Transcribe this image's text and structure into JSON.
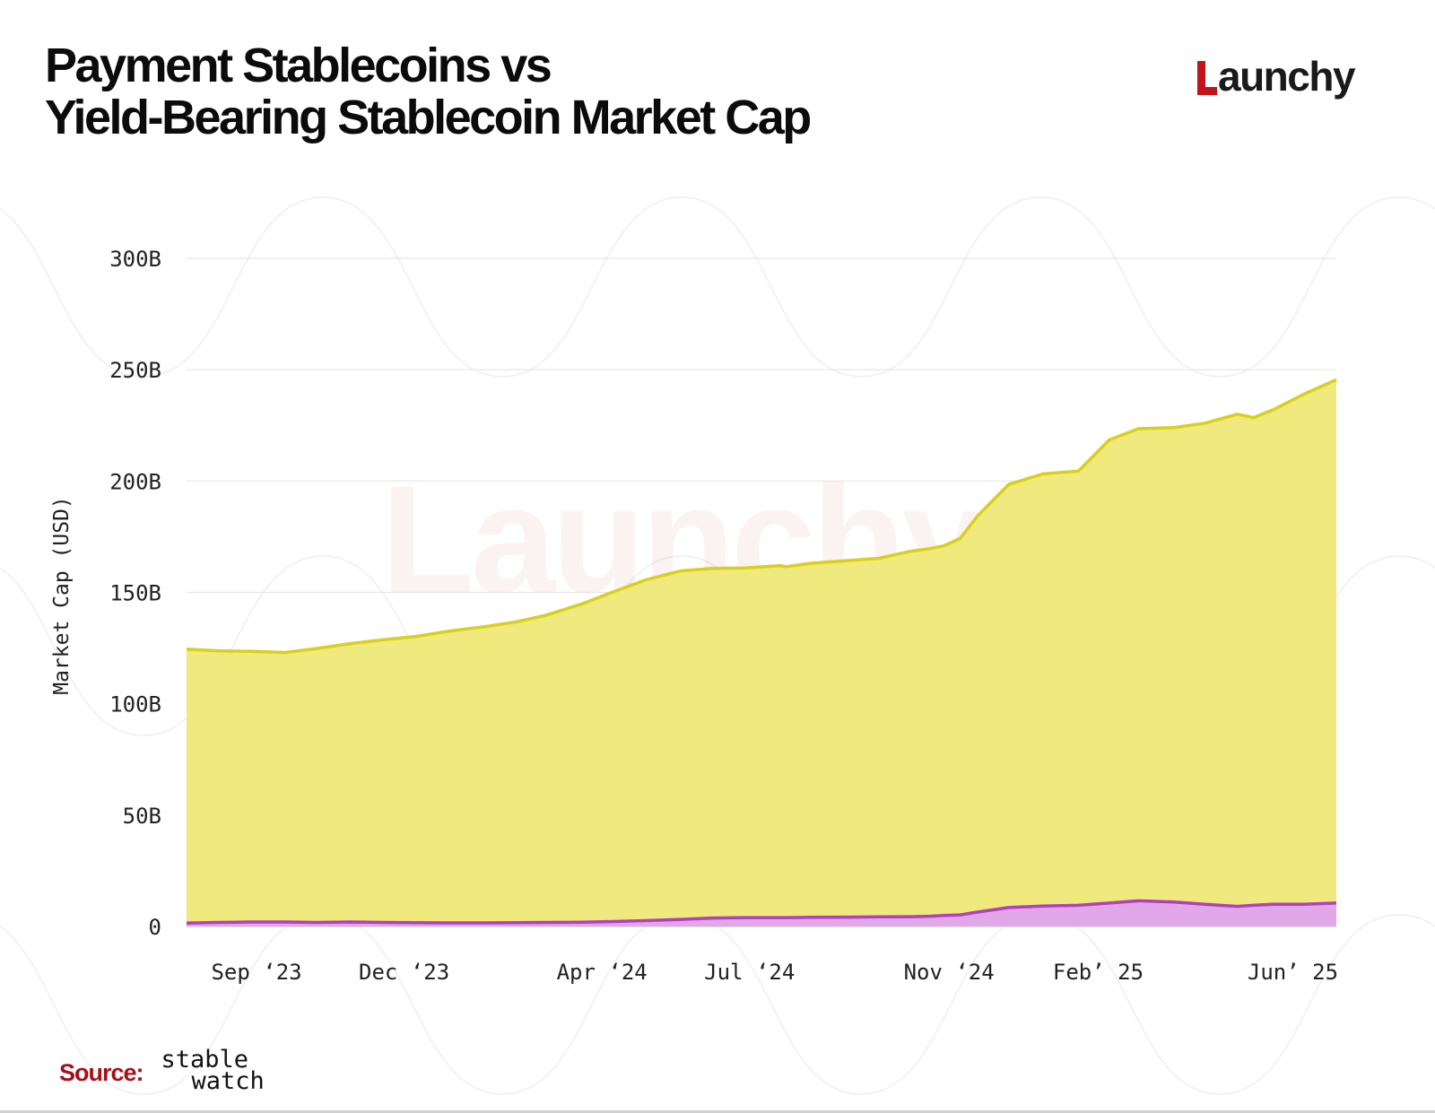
{
  "header": {
    "title_line1": "Payment Stablecoins vs",
    "title_line2": "Yield-Bearing Stablecoin Market Cap",
    "logo_text": "aunchy",
    "logo_full": "Launchy"
  },
  "watermark": "Launchy",
  "footer": {
    "source_label": "Source:",
    "source_logo_line1": "stable",
    "source_logo_line2": "watch"
  },
  "colors": {
    "payment_fill": "#f0e97e",
    "payment_line": "#d9cf1c",
    "yield_fill": "#e0a8e6",
    "yield_line": "#b13fc0",
    "brand_red": "#c2141b",
    "grid": "#e6e6e6"
  },
  "chart_data": {
    "type": "area",
    "stacked": true,
    "title": "Payment Stablecoins vs Yield-Bearing Stablecoin Market Cap",
    "ylabel": "Market Cap (USD)",
    "xlabel": "",
    "ylim": [
      0,
      300
    ],
    "y_ticks": [
      0,
      50,
      100,
      150,
      200,
      250,
      300
    ],
    "y_tick_labels": [
      "0",
      "50B",
      "100B",
      "150B",
      "200B",
      "250B",
      "300B"
    ],
    "x_tick_labels": [
      "Sep ‘23",
      "Dec ‘23",
      "Apr ‘24",
      "Jul ‘24",
      "Nov ‘24",
      "Feb’ 25",
      "Jun’ 25"
    ],
    "x_tick_dates": [
      "2023-09-01",
      "2023-12-01",
      "2024-04-01",
      "2024-07-01",
      "2024-11-01",
      "2025-02-01",
      "2025-06-01"
    ],
    "x_range": [
      "2023-08-01",
      "2025-07-10"
    ],
    "legend": "none",
    "grid": "horizontal",
    "x": [
      "2023-08-01",
      "2023-08-20",
      "2023-09-10",
      "2023-10-01",
      "2023-10-20",
      "2023-11-10",
      "2023-12-01",
      "2023-12-20",
      "2024-01-10",
      "2024-02-01",
      "2024-02-20",
      "2024-03-10",
      "2024-04-01",
      "2024-04-20",
      "2024-05-10",
      "2024-06-01",
      "2024-06-20",
      "2024-07-10",
      "2024-08-01",
      "2024-08-05",
      "2024-08-20",
      "2024-09-10",
      "2024-10-01",
      "2024-10-20",
      "2024-11-01",
      "2024-11-10",
      "2024-11-20",
      "2024-12-01",
      "2024-12-20",
      "2025-01-10",
      "2025-02-01",
      "2025-02-20",
      "2025-03-10",
      "2025-04-01",
      "2025-04-20",
      "2025-05-10",
      "2025-05-20",
      "2025-06-01",
      "2025-06-20",
      "2025-07-10"
    ],
    "series": [
      {
        "key": "payment",
        "values": [
          123.0,
          122.0,
          121.5,
          121.0,
          123.0,
          125.0,
          127.0,
          128.5,
          131.0,
          133.0,
          135.0,
          138.0,
          143.0,
          148.0,
          153.0,
          156.5,
          157.0,
          157.0,
          158.0,
          157.5,
          159.0,
          160.0,
          161.0,
          164.0,
          165.0,
          166.0,
          169.0,
          178.0,
          190.0,
          194.0,
          195.0,
          208.0,
          212.0,
          213.0,
          216.0,
          221.0,
          219.0,
          222.0,
          229.0,
          235.0
        ]
      },
      {
        "key": "yield_bearing",
        "values": [
          1.5,
          1.8,
          2.0,
          2.0,
          1.8,
          2.0,
          1.8,
          1.7,
          1.6,
          1.6,
          1.7,
          1.8,
          1.9,
          2.2,
          2.6,
          3.2,
          3.8,
          4.0,
          4.0,
          4.0,
          4.1,
          4.2,
          4.3,
          4.4,
          4.6,
          4.9,
          5.2,
          6.5,
          8.5,
          9.2,
          9.5,
          10.5,
          11.5,
          11.0,
          10.0,
          9.0,
          9.5,
          10.0,
          10.0,
          10.5
        ]
      }
    ]
  }
}
